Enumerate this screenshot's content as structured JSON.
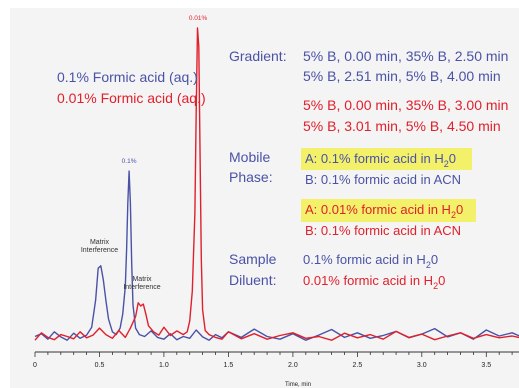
{
  "chart_data": {
    "type": "line",
    "title": "",
    "xlabel": "Time, min",
    "ylabel": "",
    "xlim": [
      0,
      3.8
    ],
    "x_ticks": [
      "0",
      "0.5",
      "1.0",
      "1.5",
      "2.0",
      "2.5",
      "3.0",
      "3.5"
    ],
    "grid": false,
    "legend_position": "top-left",
    "colors": {
      "blue": "#4a52a6",
      "red": "#e0202c",
      "highlight": "#f3f06a",
      "frame": "#ffffff"
    },
    "series": [
      {
        "name": "0.1% Formic acid (aq.)",
        "color": "#4a52a6",
        "x": [
          0.0,
          0.05,
          0.1,
          0.15,
          0.2,
          0.25,
          0.3,
          0.35,
          0.4,
          0.44,
          0.47,
          0.49,
          0.51,
          0.53,
          0.55,
          0.57,
          0.6,
          0.63,
          0.66,
          0.68,
          0.7,
          0.71,
          0.72,
          0.73,
          0.74,
          0.75,
          0.76,
          0.78,
          0.81,
          0.85,
          0.9,
          0.95,
          1.0,
          1.05,
          1.1,
          1.15,
          1.2,
          1.25,
          1.3,
          1.35,
          1.4,
          1.45,
          1.5,
          1.6,
          1.7,
          1.8,
          1.9,
          2.0,
          2.1,
          2.2,
          2.3,
          2.4,
          2.5,
          2.6,
          2.7,
          2.8,
          2.9,
          3.0,
          3.1,
          3.2,
          3.3,
          3.4,
          3.5,
          3.6,
          3.7,
          3.8
        ],
        "y": [
          1.2,
          1.8,
          0.6,
          2.2,
          1.1,
          0.4,
          1.9,
          0.8,
          1.5,
          3.2,
          9.0,
          16.0,
          16.5,
          13.5,
          9.0,
          5.0,
          2.2,
          1.6,
          3.0,
          6.0,
          12.0,
          20.0,
          30.0,
          37.0,
          30.0,
          17.0,
          8.0,
          3.0,
          1.6,
          1.2,
          2.4,
          1.0,
          0.6,
          1.8,
          0.5,
          1.2,
          0.8,
          2.6,
          1.1,
          0.4,
          1.6,
          0.9,
          2.2,
          1.0,
          2.8,
          1.2,
          0.6,
          1.8,
          0.4,
          1.5,
          2.7,
          1.0,
          2.0,
          0.8,
          1.4,
          2.3,
          0.9,
          1.7,
          2.9,
          1.1,
          2.0,
          0.6,
          2.6,
          1.3,
          2.0,
          0.8
        ]
      },
      {
        "name": "0.01% Formic acid (aq.)",
        "color": "#e0202c",
        "x": [
          0.0,
          0.05,
          0.1,
          0.15,
          0.2,
          0.25,
          0.3,
          0.35,
          0.4,
          0.45,
          0.5,
          0.55,
          0.6,
          0.65,
          0.7,
          0.74,
          0.78,
          0.8,
          0.82,
          0.84,
          0.86,
          0.88,
          0.92,
          0.96,
          1.0,
          1.05,
          1.1,
          1.15,
          1.18,
          1.2,
          1.22,
          1.24,
          1.25,
          1.26,
          1.27,
          1.28,
          1.29,
          1.3,
          1.32,
          1.35,
          1.4,
          1.45,
          1.5,
          1.6,
          1.7,
          1.8,
          1.9,
          2.0,
          2.1,
          2.2,
          2.3,
          2.4,
          2.5,
          2.6,
          2.7,
          2.8,
          2.9,
          3.0,
          3.1,
          3.2,
          3.3,
          3.4,
          3.5,
          3.6,
          3.7,
          3.8
        ],
        "y": [
          0.4,
          2.0,
          1.0,
          0.5,
          1.6,
          1.2,
          0.7,
          2.2,
          0.9,
          1.5,
          3.0,
          1.6,
          0.8,
          2.5,
          1.0,
          3.0,
          5.5,
          8.5,
          7.8,
          8.2,
          6.0,
          3.5,
          2.2,
          1.5,
          3.2,
          1.4,
          2.4,
          1.6,
          2.2,
          4.5,
          11.0,
          28.0,
          50.0,
          68.0,
          64.0,
          40.0,
          18.0,
          7.0,
          2.5,
          1.6,
          1.0,
          0.6,
          2.2,
          0.7,
          1.8,
          0.6,
          1.4,
          2.0,
          0.8,
          1.2,
          0.4,
          1.9,
          0.9,
          1.6,
          0.6,
          2.3,
          1.0,
          1.7,
          0.5,
          1.3,
          2.0,
          0.8,
          1.6,
          0.9,
          1.3,
          0.7
        ]
      }
    ],
    "annotations": [
      {
        "text": "0.01%",
        "x": 1.265,
        "y": 68.0,
        "color": "#e0202c"
      },
      {
        "text": "0.1%",
        "x": 0.73,
        "y": 37.0,
        "color": "#4a52a6"
      },
      {
        "text": "Matrix",
        "x": 0.5,
        "y": 16.5,
        "color": "#333333",
        "line": 2
      },
      {
        "text": "Interference",
        "x": 0.5,
        "y": 16.5,
        "color": "#333333",
        "line": 1
      },
      {
        "text": "Matrix",
        "x": 0.83,
        "y": 8.5,
        "color": "#333333",
        "line": 2
      },
      {
        "text": "Interference",
        "x": 0.83,
        "y": 8.5,
        "color": "#333333",
        "line": 1
      }
    ]
  },
  "info": {
    "gradient_label": "Gradient:",
    "gradient_blue_1": "5% B, 0.00 min, 35% B, 2.50 min",
    "gradient_blue_2": "5% B, 2.51 min, 5% B, 4.00 min",
    "gradient_red_1": "5% B, 0.00 min, 35% B, 3.00 min",
    "gradient_red_2": "5% B, 3.01 min, 5% B, 4.50 min",
    "mobile_label_1": "Mobile",
    "mobile_label_2": "Phase:",
    "mp_blue_a_pre": "A: 0.1% formic acid in H",
    "mp_blue_a_post": "0",
    "mp_blue_b": "B: 0.1% formic acid in ACN",
    "mp_red_a_pre": "A: 0.01% formic acid in H",
    "mp_red_a_post": "0",
    "mp_red_b": "B: 0.1% formic acid in ACN",
    "sample_label_1": "Sample",
    "sample_label_2": "Diluent:",
    "sd_blue_pre": "0.1% formic acid in H",
    "sd_blue_post": "0",
    "sd_red_pre": "0.01% formic acid in H",
    "sd_red_post": "0",
    "subscript": "2"
  }
}
